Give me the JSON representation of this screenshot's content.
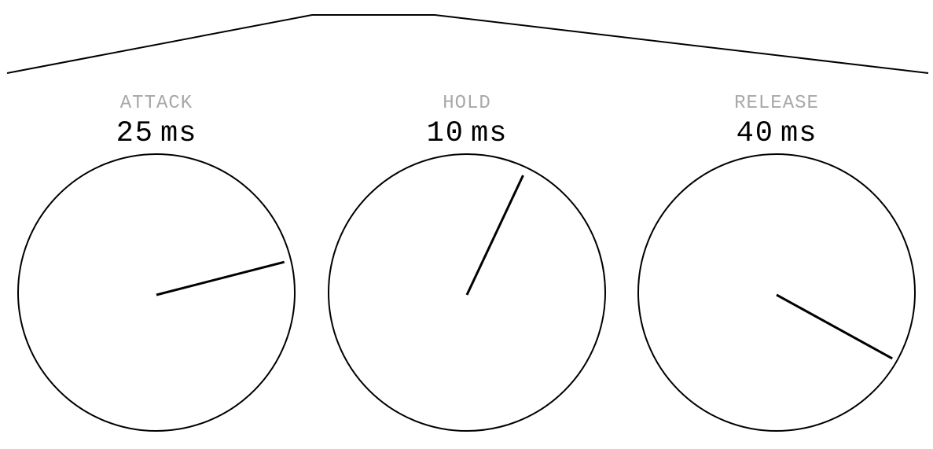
{
  "colors": {
    "label": "#a8a8a8",
    "line": "#000000",
    "background": "#ffffff"
  },
  "envelope": {
    "segments": [
      "attack",
      "hold",
      "release"
    ]
  },
  "knobs": [
    {
      "id": "attack",
      "label": "ATTACK",
      "value": "25",
      "unit": "ms",
      "fraction": 0.21,
      "dial_icon": "knob-dial-icon"
    },
    {
      "id": "hold",
      "label": "HOLD",
      "value": "10",
      "unit": "ms",
      "fraction": 0.07,
      "dial_icon": "knob-dial-icon"
    },
    {
      "id": "release",
      "label": "RELEASE",
      "value": "40",
      "unit": "ms",
      "fraction": 0.33,
      "dial_icon": "knob-dial-icon"
    }
  ]
}
